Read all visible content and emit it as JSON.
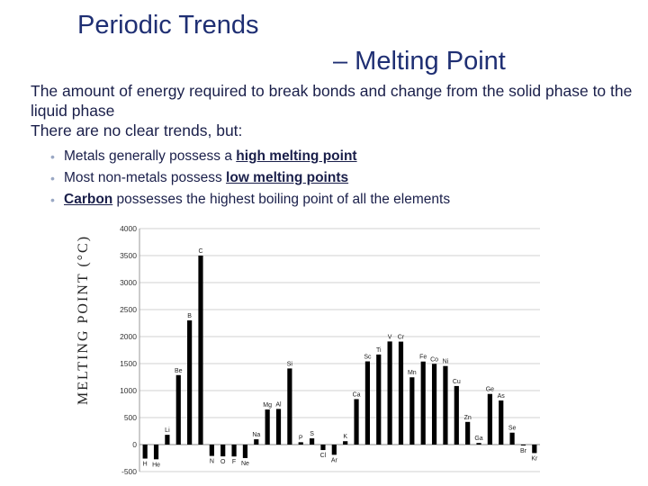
{
  "slide": {
    "title_part1": "Periodic Trends",
    "title_part2": "– Melting Point",
    "definition": "The amount of energy required to break bonds and change from the solid phase to the liquid phase",
    "lead": "There are no clear trends, but:",
    "bullets": [
      {
        "before": "Metals generally possess a ",
        "emph": "high melting point",
        "after": ""
      },
      {
        "before": "Most non-metals possess ",
        "emph": "low melting points",
        "after": ""
      },
      {
        "before": "",
        "emph": "Carbon",
        "after": " possesses the highest boiling point of all the elements"
      }
    ]
  },
  "chart_data": {
    "type": "bar",
    "ylabel": "MELTING POINT (°C)",
    "ylim": [
      -500,
      4000
    ],
    "yticks": [
      -500,
      0,
      500,
      1000,
      1500,
      2000,
      2500,
      3000,
      3500,
      4000
    ],
    "grid": true,
    "bar_color": "#000000",
    "categories": [
      "H",
      "He",
      "Li",
      "Be",
      "B",
      "C",
      "N",
      "O",
      "F",
      "Ne",
      "Na",
      "Mg",
      "Al",
      "Si",
      "P",
      "S",
      "Cl",
      "Ar",
      "K",
      "Ca",
      "Sc",
      "Ti",
      "V",
      "Cr",
      "Mn",
      "Fe",
      "Co",
      "Ni",
      "Cu",
      "Zn",
      "Ga",
      "Ge",
      "As",
      "Se",
      "Br",
      "Kr"
    ],
    "values": [
      -259,
      -272,
      181,
      1287,
      2300,
      3500,
      -210,
      -218,
      -220,
      -249,
      98,
      650,
      660,
      1410,
      44,
      115,
      -101,
      -189,
      63,
      842,
      1541,
      1668,
      1910,
      1907,
      1246,
      1538,
      1495,
      1455,
      1085,
      420,
      30,
      938,
      817,
      221,
      -7,
      -157
    ]
  }
}
